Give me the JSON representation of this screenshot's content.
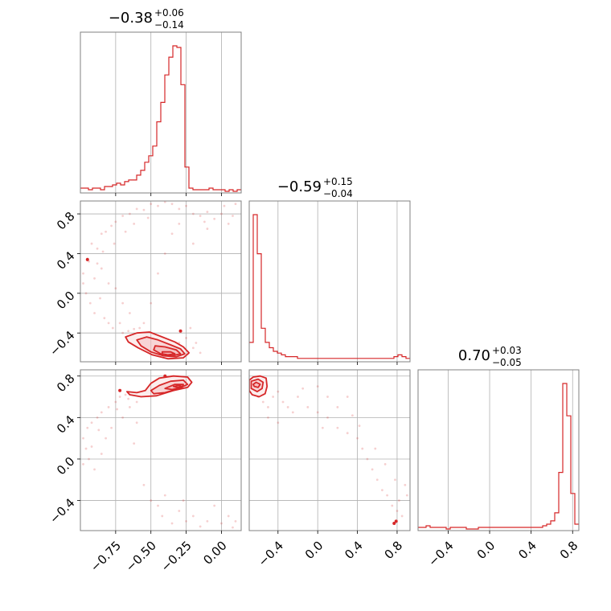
{
  "colors": {
    "main": "#d62728",
    "fill": "#f4b6b7",
    "grid": "#b0b0b0",
    "axes": "#808080"
  },
  "chart_data": {
    "type": "corner",
    "grid": true,
    "ranges": [
      [
        -1.0,
        0.14
      ],
      [
        -0.69,
        0.93
      ],
      [
        -0.69,
        0.86
      ]
    ],
    "titles": [
      {
        "value": "−0.38",
        "plus": "+0.06",
        "minus": "−0.14"
      },
      {
        "value": "−0.59",
        "plus": "+0.15",
        "minus": "−0.04"
      },
      {
        "value": "0.70",
        "plus": "+0.03",
        "minus": "−0.05"
      }
    ],
    "ticks": [
      {
        "values": [
          -0.75,
          -0.5,
          -0.25,
          0.0
        ],
        "labels": [
          "−0.75",
          "−0.50",
          "−0.25",
          "0.00"
        ]
      },
      {
        "values": [
          -0.4,
          0.0,
          0.4,
          0.8
        ],
        "labels": [
          "−0.4",
          "0.0",
          "0.4",
          "0.8"
        ]
      },
      {
        "values": [
          -0.4,
          0.0,
          0.4,
          0.8
        ],
        "labels": [
          "−0.4",
          "0.0",
          "0.4",
          "0.8"
        ]
      }
    ],
    "hist": [
      {
        "range": [
          -1.0,
          0.14
        ],
        "counts": [
          2,
          2,
          1,
          2,
          2,
          1,
          3,
          3,
          4,
          5,
          4,
          6,
          7,
          7,
          10,
          13,
          18,
          22,
          28,
          43,
          55,
          72,
          83,
          90,
          89,
          66,
          15,
          2,
          1,
          1,
          1,
          1,
          2,
          1,
          1,
          1,
          0,
          1,
          0,
          1
        ]
      },
      {
        "range": [
          -0.69,
          0.93
        ],
        "counts": [
          10,
          82,
          60,
          18,
          10,
          7,
          5,
          4,
          3,
          2,
          2,
          2,
          1,
          1,
          1,
          1,
          1,
          1,
          1,
          1,
          1,
          1,
          1,
          1,
          1,
          1,
          1,
          1,
          1,
          1,
          1,
          1,
          1,
          1,
          1,
          1,
          2,
          3,
          2,
          1
        ]
      },
      {
        "range": [
          -0.69,
          0.86
        ],
        "counts": [
          1,
          1,
          2,
          1,
          1,
          1,
          1,
          0,
          1,
          1,
          1,
          1,
          0,
          0,
          0,
          1,
          1,
          1,
          1,
          1,
          1,
          1,
          1,
          1,
          1,
          1,
          1,
          1,
          1,
          1,
          1,
          2,
          3,
          5,
          10,
          35,
          90,
          70,
          22,
          3
        ]
      }
    ],
    "contours": [
      {
        "panel": [
          0,
          1
        ],
        "levels": [
          [
            [
              -0.68,
              -0.44
            ],
            [
              -0.6,
              -0.4
            ],
            [
              -0.51,
              -0.39
            ],
            [
              -0.42,
              -0.44
            ],
            [
              -0.33,
              -0.49
            ],
            [
              -0.27,
              -0.54
            ],
            [
              -0.23,
              -0.6
            ],
            [
              -0.27,
              -0.65
            ],
            [
              -0.38,
              -0.66
            ],
            [
              -0.49,
              -0.62
            ],
            [
              -0.59,
              -0.55
            ],
            [
              -0.66,
              -0.49
            ]
          ],
          [
            [
              -0.6,
              -0.47
            ],
            [
              -0.53,
              -0.44
            ],
            [
              -0.45,
              -0.47
            ],
            [
              -0.36,
              -0.52
            ],
            [
              -0.29,
              -0.56
            ],
            [
              -0.26,
              -0.61
            ],
            [
              -0.32,
              -0.64
            ],
            [
              -0.41,
              -0.63
            ],
            [
              -0.5,
              -0.59
            ],
            [
              -0.57,
              -0.53
            ]
          ],
          [
            [
              -0.47,
              -0.53
            ],
            [
              -0.4,
              -0.54
            ],
            [
              -0.32,
              -0.57
            ],
            [
              -0.29,
              -0.61
            ],
            [
              -0.35,
              -0.63
            ],
            [
              -0.43,
              -0.61
            ],
            [
              -0.48,
              -0.57
            ]
          ],
          [
            [
              -0.42,
              -0.59
            ],
            [
              -0.36,
              -0.59
            ],
            [
              -0.33,
              -0.61
            ],
            [
              -0.38,
              -0.62
            ],
            [
              -0.42,
              -0.61
            ]
          ]
        ]
      },
      {
        "panel": [
          0,
          2
        ],
        "levels": [
          [
            [
              -0.67,
              0.65
            ],
            [
              -0.6,
              0.64
            ],
            [
              -0.54,
              0.66
            ],
            [
              -0.5,
              0.73
            ],
            [
              -0.44,
              0.78
            ],
            [
              -0.34,
              0.8
            ],
            [
              -0.24,
              0.79
            ],
            [
              -0.21,
              0.74
            ],
            [
              -0.24,
              0.69
            ],
            [
              -0.34,
              0.66
            ],
            [
              -0.46,
              0.61
            ],
            [
              -0.57,
              0.6
            ],
            [
              -0.65,
              0.62
            ]
          ],
          [
            [
              -0.5,
              0.66
            ],
            [
              -0.44,
              0.71
            ],
            [
              -0.36,
              0.75
            ],
            [
              -0.27,
              0.76
            ],
            [
              -0.24,
              0.72
            ],
            [
              -0.3,
              0.68
            ],
            [
              -0.4,
              0.64
            ],
            [
              -0.48,
              0.63
            ]
          ],
          [
            [
              -0.4,
              0.68
            ],
            [
              -0.33,
              0.72
            ],
            [
              -0.27,
              0.72
            ],
            [
              -0.28,
              0.69
            ],
            [
              -0.35,
              0.67
            ]
          ],
          [
            [
              -0.34,
              0.7
            ],
            [
              -0.3,
              0.71
            ],
            [
              -0.28,
              0.7
            ],
            [
              -0.31,
              0.69
            ]
          ]
        ]
      },
      {
        "panel": [
          1,
          2
        ],
        "levels": [
          [
            [
              -0.69,
              0.66
            ],
            [
              -0.66,
              0.62
            ],
            [
              -0.59,
              0.6
            ],
            [
              -0.53,
              0.63
            ],
            [
              -0.51,
              0.7
            ],
            [
              -0.52,
              0.78
            ],
            [
              -0.58,
              0.8
            ],
            [
              -0.65,
              0.79
            ],
            [
              -0.69,
              0.76
            ]
          ],
          [
            [
              -0.67,
              0.68
            ],
            [
              -0.61,
              0.65
            ],
            [
              -0.56,
              0.68
            ],
            [
              -0.55,
              0.74
            ],
            [
              -0.6,
              0.77
            ],
            [
              -0.67,
              0.75
            ]
          ],
          [
            [
              -0.64,
              0.7
            ],
            [
              -0.6,
              0.69
            ],
            [
              -0.58,
              0.72
            ],
            [
              -0.62,
              0.74
            ],
            [
              -0.65,
              0.72
            ]
          ]
        ]
      }
    ],
    "blobs": [
      {
        "panel": [
          0,
          1
        ],
        "x": -0.95,
        "y": 0.34
      },
      {
        "panel": [
          0,
          1
        ],
        "x": -0.29,
        "y": -0.38
      },
      {
        "panel": [
          0,
          2
        ],
        "x": -0.72,
        "y": 0.66
      },
      {
        "panel": [
          0,
          2
        ],
        "x": -0.4,
        "y": 0.8
      },
      {
        "panel": [
          1,
          2
        ],
        "x": 0.77,
        "y": -0.62
      },
      {
        "panel": [
          1,
          2
        ],
        "x": 0.79,
        "y": -0.6
      }
    ],
    "scatter": [
      {
        "panel": [
          0,
          1
        ],
        "points": [
          [
            -0.98,
            0.2
          ],
          [
            -0.95,
            0.35
          ],
          [
            -0.92,
            0.5
          ],
          [
            -0.88,
            0.45
          ],
          [
            -0.85,
            0.6
          ],
          [
            -0.82,
            0.62
          ],
          [
            -0.78,
            0.68
          ],
          [
            -0.75,
            0.72
          ],
          [
            -0.7,
            0.78
          ],
          [
            -0.65,
            0.8
          ],
          [
            -0.6,
            0.85
          ],
          [
            -0.55,
            0.84
          ],
          [
            -0.5,
            0.9
          ],
          [
            -0.45,
            0.88
          ],
          [
            -0.4,
            0.92
          ],
          [
            -0.35,
            0.9
          ],
          [
            -0.3,
            0.85
          ],
          [
            -0.25,
            0.88
          ],
          [
            -0.2,
            0.8
          ],
          [
            -0.15,
            0.78
          ],
          [
            -0.1,
            0.82
          ],
          [
            -0.05,
            0.75
          ],
          [
            0.0,
            0.8
          ],
          [
            0.05,
            0.7
          ],
          [
            0.1,
            0.9
          ],
          [
            -0.96,
            0.0
          ],
          [
            -0.93,
            -0.1
          ],
          [
            -0.9,
            -0.2
          ],
          [
            -0.86,
            -0.05
          ],
          [
            -0.83,
            -0.25
          ],
          [
            -0.8,
            -0.3
          ],
          [
            -0.77,
            -0.35
          ],
          [
            -0.72,
            -0.3
          ],
          [
            -0.7,
            -0.4
          ],
          [
            -0.66,
            -0.38
          ],
          [
            -0.62,
            -0.36
          ],
          [
            -0.58,
            -0.35
          ],
          [
            -0.98,
            0.1
          ],
          [
            -0.9,
            0.15
          ],
          [
            -0.85,
            0.25
          ],
          [
            -0.8,
            0.1
          ],
          [
            -0.75,
            0.05
          ],
          [
            -0.7,
            -0.1
          ],
          [
            -0.65,
            -0.2
          ],
          [
            -0.55,
            -0.3
          ],
          [
            -0.5,
            -0.1
          ],
          [
            -0.45,
            0.2
          ],
          [
            -0.4,
            0.4
          ],
          [
            -0.35,
            0.6
          ],
          [
            -0.3,
            0.7
          ],
          [
            -0.2,
            0.5
          ],
          [
            -0.1,
            0.65
          ],
          [
            -0.3,
            -0.5
          ],
          [
            -0.25,
            -0.45
          ],
          [
            -0.2,
            -0.55
          ],
          [
            -0.15,
            -0.6
          ],
          [
            -0.22,
            -0.35
          ],
          [
            -0.18,
            -0.5
          ],
          [
            -0.94,
            0.32
          ],
          [
            -0.88,
            0.3
          ],
          [
            -0.84,
            0.42
          ],
          [
            -0.76,
            0.5
          ],
          [
            -0.68,
            0.62
          ],
          [
            -0.62,
            0.7
          ],
          [
            -0.52,
            0.76
          ],
          [
            -0.12,
            0.72
          ],
          [
            0.02,
            0.88
          ],
          [
            0.08,
            0.78
          ]
        ]
      },
      {
        "panel": [
          0,
          2
        ],
        "points": [
          [
            -0.98,
            0.2
          ],
          [
            -0.95,
            0.3
          ],
          [
            -0.92,
            0.35
          ],
          [
            -0.88,
            0.4
          ],
          [
            -0.85,
            0.45
          ],
          [
            -0.8,
            0.5
          ],
          [
            -0.75,
            0.55
          ],
          [
            -0.72,
            0.6
          ],
          [
            -0.68,
            0.62
          ],
          [
            -0.65,
            0.5
          ],
          [
            -0.6,
            0.55
          ],
          [
            -0.96,
            0.1
          ],
          [
            -0.94,
            0.0
          ],
          [
            -0.9,
            -0.1
          ],
          [
            -0.85,
            0.05
          ],
          [
            -0.78,
            0.3
          ],
          [
            -0.7,
            0.4
          ],
          [
            -0.6,
            0.35
          ],
          [
            -0.5,
            -0.4
          ],
          [
            -0.45,
            -0.45
          ],
          [
            -0.4,
            -0.35
          ],
          [
            -0.3,
            -0.5
          ],
          [
            -0.25,
            -0.6
          ],
          [
            -0.2,
            -0.55
          ],
          [
            -0.1,
            -0.6
          ],
          [
            0.0,
            -0.62
          ],
          [
            0.05,
            -0.55
          ],
          [
            0.1,
            -0.6
          ],
          [
            -0.35,
            -0.62
          ],
          [
            -0.15,
            -0.65
          ],
          [
            -0.55,
            -0.25
          ],
          [
            -0.62,
            0.15
          ],
          [
            -0.82,
            0.2
          ],
          [
            -0.92,
            0.12
          ],
          [
            -0.98,
            -0.05
          ],
          [
            -0.87,
            0.28
          ],
          [
            -0.74,
            0.48
          ],
          [
            -0.66,
            0.58
          ],
          [
            -0.42,
            -0.55
          ],
          [
            -0.05,
            -0.45
          ],
          [
            0.08,
            -0.66
          ],
          [
            -0.27,
            -0.4
          ]
        ]
      },
      {
        "panel": [
          1,
          2
        ],
        "points": [
          [
            -0.6,
            0.6
          ],
          [
            -0.55,
            0.55
          ],
          [
            -0.5,
            0.5
          ],
          [
            -0.45,
            0.6
          ],
          [
            -0.4,
            0.65
          ],
          [
            -0.35,
            0.55
          ],
          [
            -0.3,
            0.5
          ],
          [
            -0.25,
            0.45
          ],
          [
            -0.2,
            0.6
          ],
          [
            -0.1,
            0.5
          ],
          [
            0.0,
            0.45
          ],
          [
            0.1,
            0.4
          ],
          [
            0.2,
            0.3
          ],
          [
            0.3,
            0.25
          ],
          [
            0.4,
            0.2
          ],
          [
            0.45,
            0.1
          ],
          [
            0.5,
            0.0
          ],
          [
            0.55,
            -0.1
          ],
          [
            0.6,
            -0.2
          ],
          [
            0.65,
            -0.3
          ],
          [
            0.7,
            -0.35
          ],
          [
            0.75,
            -0.45
          ],
          [
            0.8,
            -0.5
          ],
          [
            0.85,
            -0.55
          ],
          [
            0.9,
            -0.35
          ],
          [
            0.88,
            -0.25
          ],
          [
            -0.5,
            0.4
          ],
          [
            -0.4,
            0.35
          ],
          [
            0.0,
            0.7
          ],
          [
            0.1,
            0.6
          ],
          [
            0.2,
            0.5
          ],
          [
            0.3,
            0.6
          ],
          [
            0.35,
            0.42
          ],
          [
            0.42,
            0.32
          ],
          [
            0.58,
            0.1
          ],
          [
            0.68,
            -0.05
          ],
          [
            0.78,
            -0.2
          ],
          [
            0.82,
            -0.4
          ],
          [
            -0.15,
            0.68
          ],
          [
            0.05,
            0.3
          ]
        ]
      }
    ]
  }
}
